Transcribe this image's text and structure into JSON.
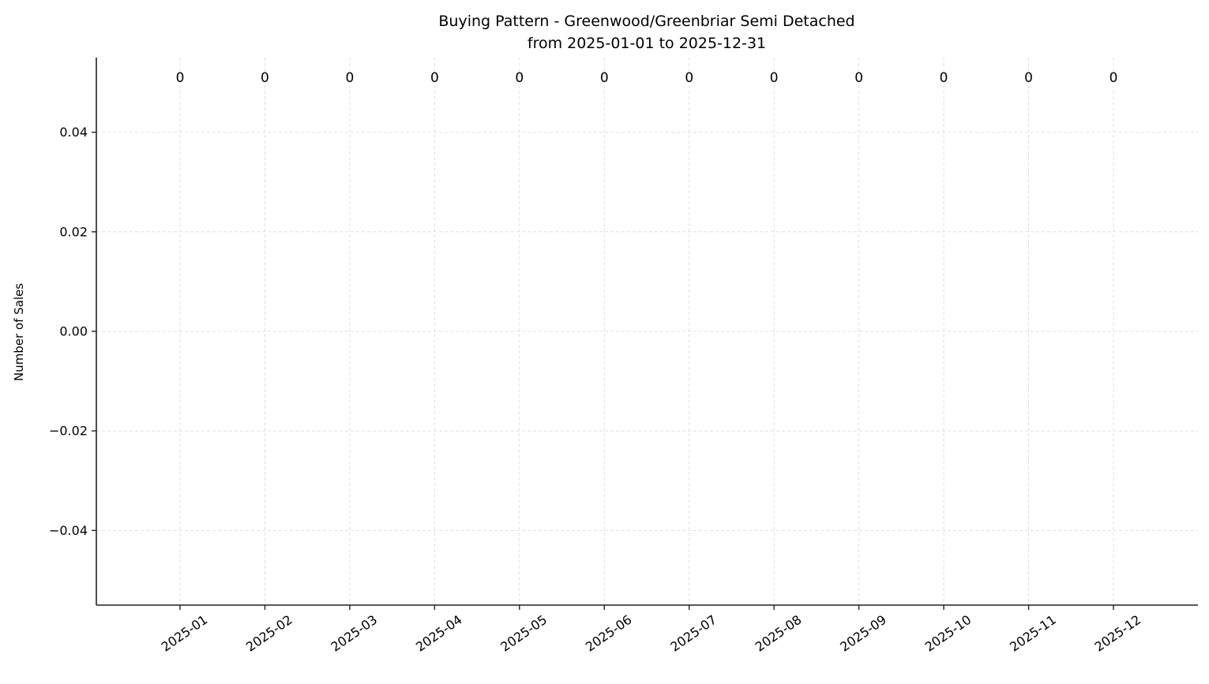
{
  "chart_data": {
    "type": "bar",
    "title": "Buying Pattern - Greenwood/Greenbriar Semi Detached",
    "subtitle": "from 2025-01-01 to 2025-12-31",
    "xlabel": "",
    "ylabel": "Number of Sales",
    "categories": [
      "2025-01",
      "2025-02",
      "2025-03",
      "2025-04",
      "2025-05",
      "2025-06",
      "2025-07",
      "2025-08",
      "2025-09",
      "2025-10",
      "2025-11",
      "2025-12"
    ],
    "values": [
      0,
      0,
      0,
      0,
      0,
      0,
      0,
      0,
      0,
      0,
      0,
      0
    ],
    "data_labels": [
      "0",
      "0",
      "0",
      "0",
      "0",
      "0",
      "0",
      "0",
      "0",
      "0",
      "0",
      "0"
    ],
    "ylim": [
      -0.055,
      0.055
    ],
    "yticks": [
      -0.04,
      -0.02,
      0.0,
      0.02,
      0.04
    ],
    "ytick_labels": [
      "−0.04",
      "−0.02",
      "0.00",
      "0.02",
      "0.04"
    ],
    "grid": true,
    "colors": {
      "grid": "#d9d9d9",
      "axis": "#222222",
      "bar": "#1f77b4"
    }
  }
}
